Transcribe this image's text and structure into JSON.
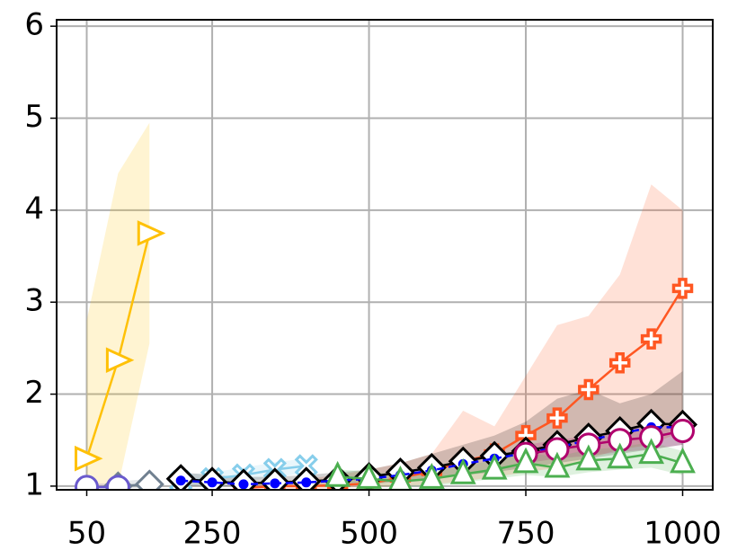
{
  "chart_data": {
    "type": "line",
    "xlim": [
      2,
      1048
    ],
    "ylim": [
      0.96,
      6.07
    ],
    "xticks": [
      50,
      250,
      500,
      750,
      1000
    ],
    "yticks": [
      1,
      2,
      3,
      4,
      5,
      6
    ],
    "grid": true,
    "series": [
      {
        "color": "#ffc107",
        "marker": "triangle-right",
        "x": [
          50,
          100,
          150
        ],
        "values": [
          1.3,
          2.37,
          3.75
        ],
        "lower": [
          1.0,
          1.0,
          2.55
        ],
        "upper": [
          2.8,
          4.4,
          4.95
        ]
      },
      {
        "color": "#87ceeb",
        "marker": "x",
        "x": [
          200,
          250,
          300,
          350,
          400
        ],
        "values": [
          1.05,
          1.08,
          1.12,
          1.18,
          1.22
        ],
        "lower": [
          1.0,
          1.02,
          1.05,
          1.1,
          1.14
        ],
        "upper": [
          1.12,
          1.15,
          1.2,
          1.26,
          1.3
        ]
      },
      {
        "color": "#708090",
        "marker": "diamond",
        "x": [
          100,
          150
        ],
        "values": [
          1.0,
          1.02
        ],
        "lower": [
          0.98,
          0.98
        ],
        "upper": [
          1.05,
          1.08
        ]
      },
      {
        "color": "#6a5acd",
        "marker": "circle",
        "x": [
          50,
          100
        ],
        "values": [
          0.99,
          0.99
        ],
        "lower": [
          0.97,
          0.97
        ],
        "upper": [
          1.03,
          1.03
        ]
      },
      {
        "color": "#ff5722",
        "marker": "plus",
        "x": [
          300,
          350,
          400,
          450,
          500,
          550,
          600,
          650,
          700,
          750,
          800,
          850,
          900,
          950,
          1000
        ],
        "values": [
          0.98,
          1.0,
          1.0,
          1.01,
          1.03,
          1.09,
          1.16,
          1.27,
          1.35,
          1.55,
          1.74,
          2.05,
          2.34,
          2.6,
          3.15
        ],
        "lower": [
          0.97,
          0.97,
          0.97,
          0.98,
          0.99,
          1.0,
          1.02,
          1.05,
          1.1,
          1.15,
          1.2,
          1.3,
          1.4,
          1.45,
          1.6
        ],
        "upper": [
          1.0,
          1.05,
          1.08,
          1.12,
          1.18,
          1.25,
          1.35,
          1.82,
          1.65,
          2.2,
          2.75,
          2.85,
          3.3,
          4.28,
          4.0
        ]
      },
      {
        "color": "#000000",
        "marker": "diamond",
        "x": [
          200,
          250,
          300,
          350,
          400,
          450,
          500,
          550,
          600,
          650,
          700,
          750,
          800,
          850,
          900,
          950,
          1000
        ],
        "values": [
          1.08,
          1.05,
          1.03,
          1.04,
          1.05,
          1.07,
          1.1,
          1.15,
          1.2,
          1.27,
          1.33,
          1.38,
          1.45,
          1.53,
          1.6,
          1.68,
          1.67
        ],
        "lower": [
          1.0,
          1.0,
          1.0,
          1.0,
          1.0,
          1.0,
          1.02,
          1.05,
          1.08,
          1.12,
          1.15,
          1.2,
          1.25,
          1.3,
          1.35,
          1.4,
          1.45
        ],
        "upper": [
          1.15,
          1.12,
          1.1,
          1.1,
          1.12,
          1.15,
          1.18,
          1.25,
          1.35,
          1.45,
          1.55,
          1.7,
          1.95,
          2.05,
          1.9,
          2.0,
          2.25
        ]
      },
      {
        "color": "#0000ff",
        "marker": "dot",
        "dashed": true,
        "x": [
          200,
          250,
          300,
          350,
          400,
          450,
          500,
          550,
          600,
          650,
          700,
          750,
          800,
          850,
          900,
          950,
          1000
        ],
        "values": [
          1.06,
          1.04,
          1.02,
          1.03,
          1.04,
          1.06,
          1.08,
          1.12,
          1.17,
          1.24,
          1.3,
          1.36,
          1.42,
          1.5,
          1.57,
          1.64,
          1.64
        ]
      },
      {
        "color": "#b0006d",
        "marker": "circle",
        "x": [
          750,
          800,
          850,
          900,
          950,
          1000
        ],
        "values": [
          1.35,
          1.4,
          1.45,
          1.5,
          1.53,
          1.6
        ],
        "lower": [
          1.25,
          1.3,
          1.33,
          1.37,
          1.4,
          1.45
        ],
        "upper": [
          1.45,
          1.5,
          1.55,
          1.6,
          1.65,
          1.72
        ]
      },
      {
        "color": "#4caf50",
        "marker": "triangle-up",
        "x": [
          450,
          500,
          550,
          600,
          650,
          700,
          750,
          800,
          850,
          900,
          950,
          1000
        ],
        "values": [
          1.1,
          1.08,
          1.05,
          1.08,
          1.13,
          1.18,
          1.25,
          1.2,
          1.28,
          1.3,
          1.35,
          1.25
        ],
        "lower": [
          1.02,
          1.0,
          0.99,
          1.0,
          1.04,
          1.08,
          1.12,
          1.1,
          1.15,
          1.18,
          1.2,
          1.12
        ],
        "upper": [
          1.18,
          1.16,
          1.12,
          1.16,
          1.22,
          1.28,
          1.36,
          1.32,
          1.4,
          1.42,
          1.48,
          1.38
        ]
      }
    ]
  }
}
